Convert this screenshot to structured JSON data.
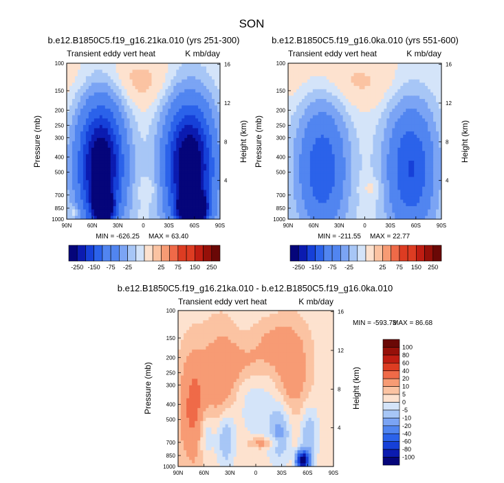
{
  "page_title": "SON",
  "colors": {
    "neg": [
      "#05057a",
      "#0b1bb0",
      "#1640d8",
      "#2b62ea",
      "#5185f0",
      "#7ba4f4",
      "#a7c6f6",
      "#d4e4f9"
    ],
    "pos": [
      "#fde2cf",
      "#fbc3a2",
      "#f79b74",
      "#ef6a48",
      "#dd3c22",
      "#bf1d12",
      "#961009",
      "#6a0806"
    ],
    "zero_neg": "#d4e4f9",
    "zero_pos": "#fde2cf"
  },
  "chart_data": [
    {
      "type": "contour",
      "name": "panel-left",
      "title": "b.e12.B1850C5.f19_g16.21ka.010 (yrs 251-300)",
      "left_label": "Transient eddy vert heat",
      "right_label": "K mb/day",
      "xlabel": "",
      "ylabel": "Pressure (mb)",
      "y2label": "Height (km)",
      "x_ticks": [
        "90N",
        "60N",
        "30N",
        "0",
        "30S",
        "60S",
        "90S"
      ],
      "xlim": [
        90,
        -90
      ],
      "y_ticks": [
        "100",
        "150",
        "200",
        "250",
        "300",
        "400",
        "500",
        "700",
        "850",
        "1000"
      ],
      "y_tick_values": [
        100,
        150,
        200,
        250,
        300,
        400,
        500,
        700,
        850,
        1000
      ],
      "ylim": [
        1000,
        100
      ],
      "y2_ticks": [
        "16",
        "12",
        "8",
        "4"
      ],
      "y2_tick_values": [
        16,
        12,
        8,
        4
      ],
      "min_label": "MIN = -626.25",
      "max_label": "MAX = 63.40",
      "min": -626.25,
      "max": 63.4,
      "levels": [
        -250,
        -200,
        -150,
        -100,
        -75,
        -50,
        -25,
        -10,
        0,
        10,
        25,
        50,
        75,
        100,
        150,
        200,
        250
      ],
      "colorbar_labels": [
        "-250",
        "-150",
        "-75",
        "-25",
        "25",
        "75",
        "150",
        "250"
      ],
      "colorbar_label_values": [
        -250,
        -150,
        -75,
        -25,
        25,
        75,
        150,
        250
      ],
      "blobs": [
        {
          "lat": 50,
          "logp": 2.66,
          "amp": -320,
          "slat": 17,
          "slogp": 0.26
        },
        {
          "lat": 47,
          "logp": 2.92,
          "amp": -430,
          "slat": 7,
          "slogp": 0.06
        },
        {
          "lat": -54,
          "logp": 2.66,
          "amp": -330,
          "slat": 18,
          "slogp": 0.26
        },
        {
          "lat": -58,
          "logp": 2.93,
          "amp": -520,
          "slat": 10,
          "slogp": 0.06
        },
        {
          "lat": 20,
          "logp": 2.12,
          "amp": 18,
          "slat": 60,
          "slogp": 0.14
        },
        {
          "lat": -10,
          "logp": 2.81,
          "amp": 12,
          "slat": 10,
          "slogp": 0.05
        },
        {
          "lat": 80,
          "logp": 2.95,
          "amp": 30,
          "slat": 4,
          "slogp": 0.03
        }
      ],
      "background": -4
    },
    {
      "type": "contour",
      "name": "panel-right",
      "title": "b.e12.B1850C5.f19_g16.0ka.010 (yrs 551-600)",
      "left_label": "Transient eddy vert heat",
      "right_label": "K mb/day",
      "xlabel": "",
      "ylabel": "Pressure (mb)",
      "y2label": "Height (km)",
      "x_ticks": [
        "90N",
        "60N",
        "30N",
        "0",
        "30S",
        "60S",
        "90S"
      ],
      "xlim": [
        90,
        -90
      ],
      "y_ticks": [
        "100",
        "150",
        "200",
        "250",
        "300",
        "400",
        "500",
        "700",
        "850",
        "1000"
      ],
      "y_tick_values": [
        100,
        150,
        200,
        250,
        300,
        400,
        500,
        700,
        850,
        1000
      ],
      "ylim": [
        1000,
        100
      ],
      "y2_ticks": [
        "16",
        "12",
        "8",
        "4"
      ],
      "y2_tick_values": [
        16,
        12,
        8,
        4
      ],
      "min_label": "MIN = -211.55",
      "max_label": "MAX = 22.77",
      "min": -211.55,
      "max": 22.77,
      "levels": [
        -250,
        -200,
        -150,
        -100,
        -75,
        -50,
        -25,
        -10,
        0,
        10,
        25,
        50,
        75,
        100,
        150,
        200,
        250
      ],
      "colorbar_labels": [
        "-250",
        "-150",
        "-75",
        "-25",
        "25",
        "75",
        "150",
        "250"
      ],
      "colorbar_label_values": [
        -250,
        -150,
        -75,
        -25,
        25,
        75,
        150,
        250
      ],
      "blobs": [
        {
          "lat": 50,
          "logp": 2.68,
          "amp": -135,
          "slat": 18,
          "slogp": 0.26
        },
        {
          "lat": -54,
          "logp": 2.68,
          "amp": -150,
          "slat": 18,
          "slogp": 0.26
        },
        {
          "lat": 20,
          "logp": 2.12,
          "amp": 16,
          "slat": 60,
          "slogp": 0.14
        },
        {
          "lat": -10,
          "logp": 2.8,
          "amp": 12,
          "slat": 10,
          "slogp": 0.05
        }
      ],
      "background": -4
    },
    {
      "type": "contour",
      "name": "panel-diff",
      "title": "b.e12.B1850C5.f19_g16.21ka.010 - b.e12.B1850C5.f19_g16.0ka.010",
      "left_label": "Transient eddy vert heat",
      "right_label": "K mb/day",
      "xlabel": "",
      "ylabel": "Pressure (mb)",
      "y2label": "Height (km)",
      "x_ticks": [
        "90N",
        "60N",
        "30N",
        "0",
        "30S",
        "60S",
        "90S"
      ],
      "xlim": [
        90,
        -90
      ],
      "y_ticks": [
        "100",
        "150",
        "200",
        "250",
        "300",
        "400",
        "500",
        "700",
        "850",
        "1000"
      ],
      "y_tick_values": [
        100,
        150,
        200,
        250,
        300,
        400,
        500,
        700,
        850,
        1000
      ],
      "ylim": [
        1000,
        100
      ],
      "y2_ticks": [
        "16",
        "12",
        "8",
        "4"
      ],
      "y2_tick_values": [
        16,
        12,
        8,
        4
      ],
      "min_label": "MIN = -593.73",
      "max_label": "MAX = 86.68",
      "min": -593.73,
      "max": 86.68,
      "levels": [
        -100,
        -80,
        -60,
        -40,
        -20,
        -10,
        -5,
        0,
        5,
        10,
        20,
        40,
        60,
        80,
        100
      ],
      "colorbar_labels": [
        "100",
        "80",
        "60",
        "40",
        "20",
        "10",
        "5",
        "0",
        "-5",
        "-10",
        "-20",
        "-40",
        "-60",
        "-80",
        "-100"
      ],
      "colorbar_label_values": [
        100,
        80,
        60,
        40,
        20,
        10,
        5,
        0,
        -5,
        -10,
        -20,
        -40,
        -60,
        -80,
        -100
      ],
      "blobs": [
        {
          "lat": 72,
          "logp": 2.62,
          "amp": 22,
          "slat": 11,
          "slogp": 0.24
        },
        {
          "lat": 40,
          "logp": 2.45,
          "amp": 16,
          "slat": 14,
          "slogp": 0.22
        },
        {
          "lat": 10,
          "logp": 2.34,
          "amp": 9,
          "slat": 22,
          "slogp": 0.1
        },
        {
          "lat": -42,
          "logp": 2.42,
          "amp": 15,
          "slat": 15,
          "slogp": 0.2
        },
        {
          "lat": -20,
          "logp": 2.2,
          "amp": 8,
          "slat": 18,
          "slogp": 0.1
        },
        {
          "lat": -8,
          "logp": 2.85,
          "amp": 12,
          "slat": 13,
          "slogp": 0.025
        },
        {
          "lat": 58,
          "logp": 2.78,
          "amp": -12,
          "slat": 7,
          "slogp": 0.12
        },
        {
          "lat": 35,
          "logp": 2.82,
          "amp": -14,
          "slat": 7,
          "slogp": 0.13
        },
        {
          "lat": -28,
          "logp": 2.78,
          "amp": -14,
          "slat": 9,
          "slogp": 0.13
        },
        {
          "lat": -62,
          "logp": 2.8,
          "amp": -13,
          "slat": 7,
          "slogp": 0.13
        },
        {
          "lat": -55,
          "logp": 2.96,
          "amp": -130,
          "slat": 4.5,
          "slogp": 0.035
        },
        {
          "lat": 0,
          "logp": 2.55,
          "amp": -6,
          "slat": 40,
          "slogp": 0.22
        }
      ],
      "background": 3
    }
  ]
}
